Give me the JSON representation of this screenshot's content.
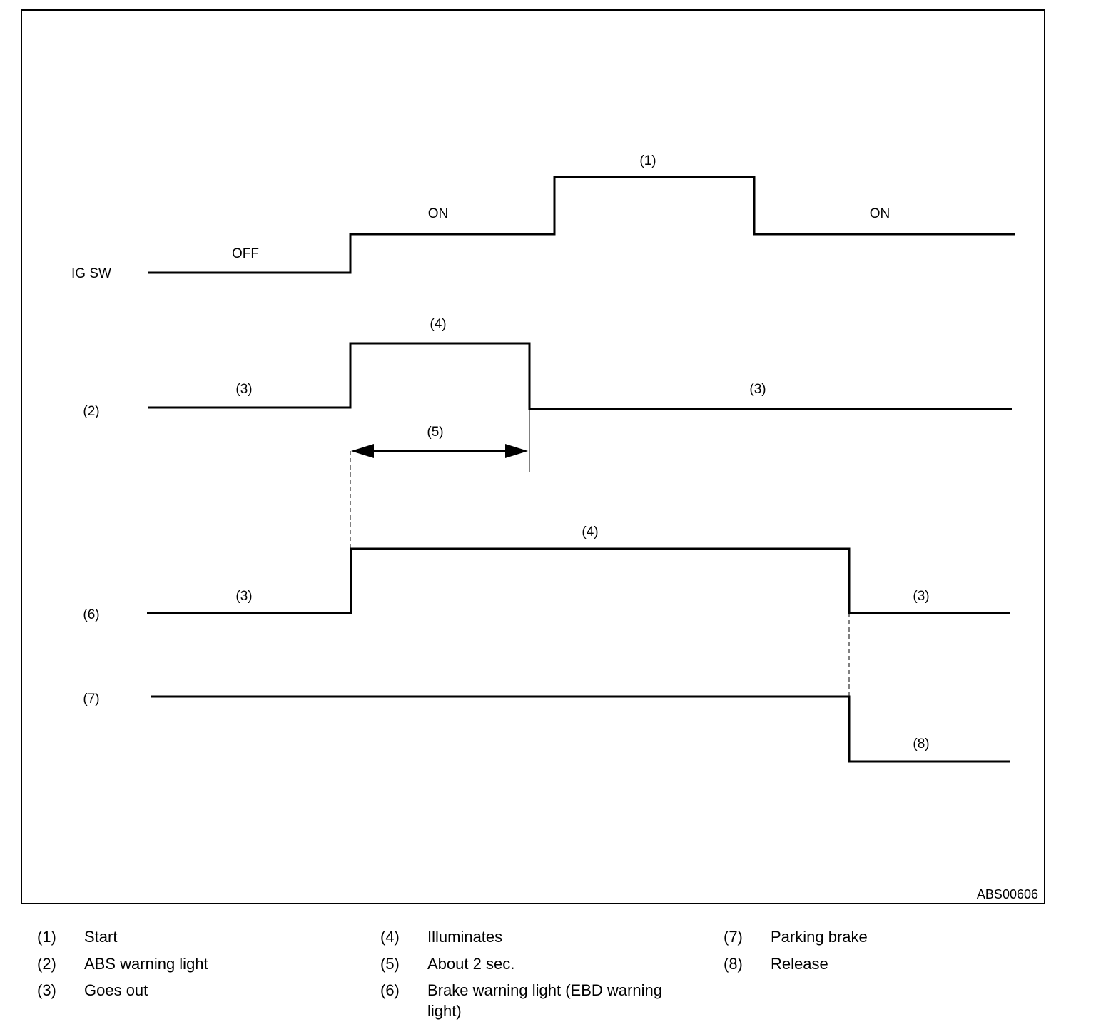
{
  "diagram": {
    "figure_id": "ABS00606",
    "rows": {
      "ig_sw": {
        "label": "IG SW",
        "off": "OFF",
        "on1": "ON",
        "start": "(1)",
        "on2": "ON"
      },
      "abs": {
        "label": "(2)",
        "out1": "(3)",
        "illum": "(4)",
        "out2": "(3)",
        "duration": "(5)"
      },
      "brake": {
        "label": "(6)",
        "out1": "(3)",
        "illum": "(4)",
        "out2": "(3)"
      },
      "parking": {
        "label": "(7)",
        "release": "(8)"
      }
    }
  },
  "legend": [
    {
      "num": "(1)",
      "text": "Start"
    },
    {
      "num": "(2)",
      "text": "ABS warning light"
    },
    {
      "num": "(3)",
      "text": "Goes out"
    },
    {
      "num": "(4)",
      "text": "Illuminates"
    },
    {
      "num": "(5)",
      "text": "About 2 sec."
    },
    {
      "num": "(6)",
      "text": "Brake warning light (EBD warning light)"
    },
    {
      "num": "(7)",
      "text": "Parking brake"
    },
    {
      "num": "(8)",
      "text": "Release"
    }
  ]
}
